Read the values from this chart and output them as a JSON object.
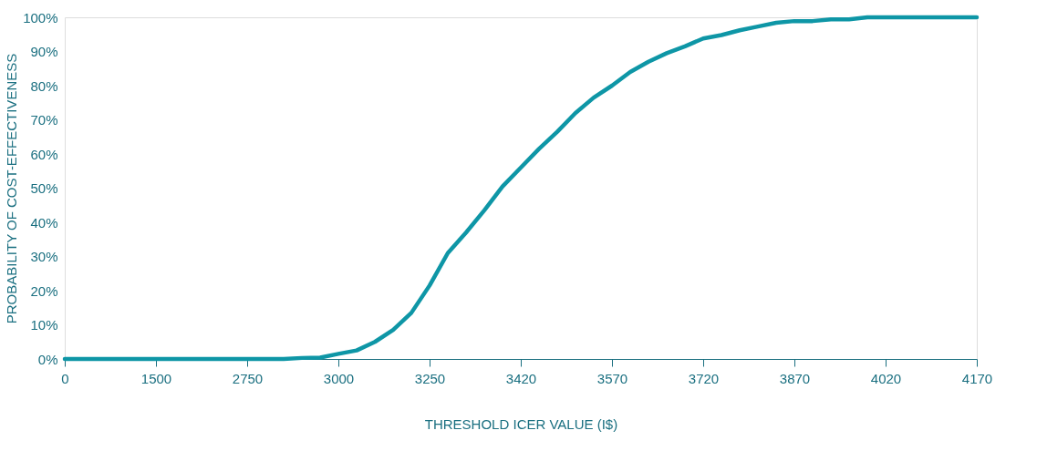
{
  "chart_data": {
    "type": "line",
    "xlabel": "THRESHOLD ICER VALUE (I$)",
    "ylabel": "PROBABILITY OF COST-EFFECTIVENESS",
    "categories": [
      "0",
      null,
      null,
      null,
      null,
      "1500",
      null,
      null,
      null,
      null,
      "2750",
      null,
      null,
      null,
      null,
      "3000",
      null,
      null,
      null,
      null,
      "3250",
      null,
      null,
      null,
      null,
      "3420",
      null,
      null,
      null,
      null,
      "3570",
      null,
      null,
      null,
      null,
      "3720",
      null,
      null,
      null,
      null,
      "3870",
      null,
      null,
      null,
      null,
      "4020",
      null,
      null,
      null,
      null,
      "4170"
    ],
    "series": [
      {
        "color": "#0e96a6",
        "values": [
          0,
          0,
          0,
          0,
          0,
          0,
          0,
          0,
          0,
          0,
          0,
          0,
          0,
          0.3,
          0.4,
          1.5,
          2.5,
          5,
          8.5,
          13.5,
          21.5,
          31,
          37,
          43.5,
          50.5,
          56,
          61.5,
          66.5,
          72,
          76.5,
          80,
          84,
          87,
          89.5,
          91.5,
          93.8,
          94.8,
          96.2,
          97.3,
          98.4,
          98.9,
          98.9,
          99.4,
          99.4,
          100,
          100,
          100,
          100,
          100,
          100,
          100
        ]
      }
    ],
    "ylim": [
      0,
      100
    ],
    "yticks": [
      {
        "value": 0,
        "label": "0%"
      },
      {
        "value": 10,
        "label": "10%"
      },
      {
        "value": 20,
        "label": "20%"
      },
      {
        "value": 30,
        "label": "30%"
      },
      {
        "value": 40,
        "label": "40%"
      },
      {
        "value": 50,
        "label": "50%"
      },
      {
        "value": 60,
        "label": "60%"
      },
      {
        "value": 70,
        "label": "70%"
      },
      {
        "value": 80,
        "label": "80%"
      },
      {
        "value": 90,
        "label": "90%"
      },
      {
        "value": 100,
        "label": "100%"
      }
    ],
    "grid": false,
    "marker": "none",
    "line_style": "solid"
  }
}
